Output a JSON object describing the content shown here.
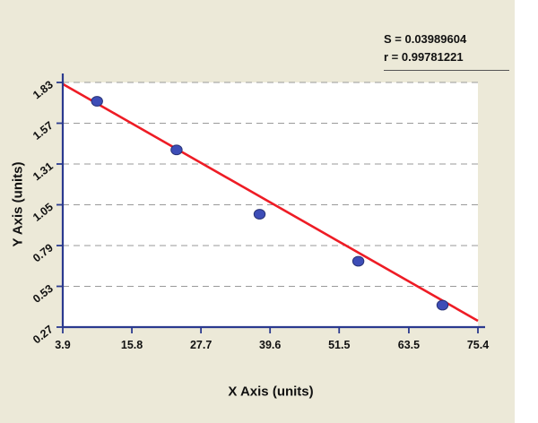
{
  "stats": {
    "s": "S = 0.03989604",
    "r": "r = 0.99781221"
  },
  "chart_data": {
    "type": "scatter",
    "title": "",
    "xlabel": "X Axis (units)",
    "ylabel": "Y Axis (units)",
    "xlim": [
      3.9,
      75.4
    ],
    "ylim": [
      0.27,
      1.83
    ],
    "x_tick_labels": [
      "3.9",
      "15.8",
      "27.7",
      "39.6",
      "51.5",
      "63.5",
      "75.4"
    ],
    "y_tick_labels": [
      "0.27",
      "0.53",
      "0.79",
      "1.05",
      "1.31",
      "1.57",
      "1.83"
    ],
    "grid": "horizontal dashed",
    "legend": "none",
    "stats": {
      "S": 0.03989604,
      "r": 0.99781221
    },
    "points": [
      {
        "x": 9.8,
        "y": 1.71
      },
      {
        "x": 23.5,
        "y": 1.4
      },
      {
        "x": 37.8,
        "y": 0.99
      },
      {
        "x": 54.8,
        "y": 0.69
      },
      {
        "x": 69.3,
        "y": 0.41
      }
    ],
    "regression_line": {
      "x1": 3.9,
      "y1": 1.82,
      "x2": 75.4,
      "y2": 0.31
    },
    "colors": {
      "background": "#ece9d8",
      "plot_bg": "#ffffff",
      "axis": "#2b3a8f",
      "line": "#ee1c25",
      "point": "#3d4db7",
      "grid": "#9a9a9a",
      "text": "#111111"
    }
  }
}
